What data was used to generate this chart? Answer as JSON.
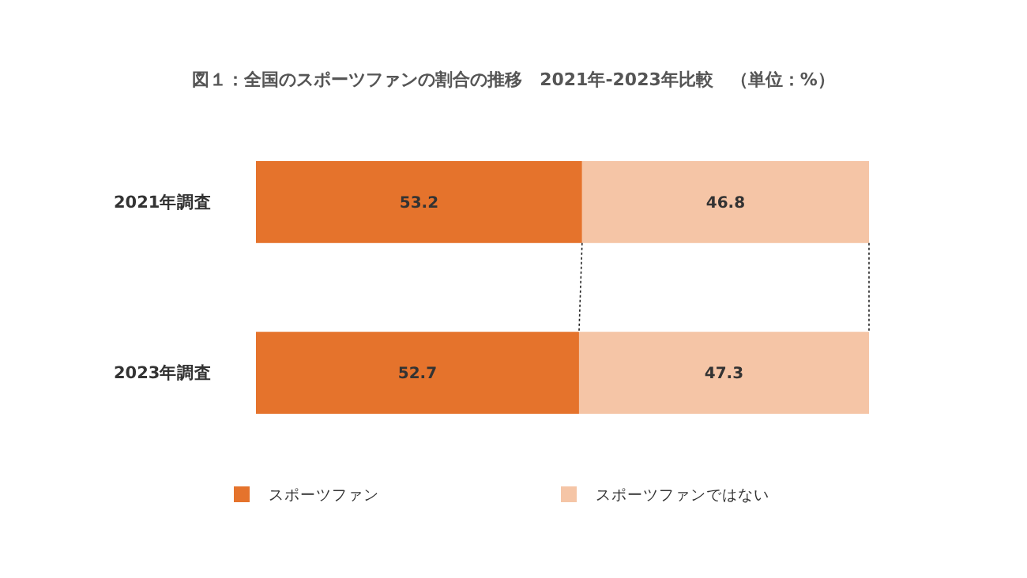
{
  "chart_data": {
    "type": "bar",
    "orientation": "horizontal",
    "stacked": true,
    "title": "図１：全国のスポーツファンの割合の推移　2021年-2023年比較　（単位：%）",
    "categories": [
      "2021年調査",
      "2023年調査"
    ],
    "series": [
      {
        "name": "スポーツファン",
        "color": "#e5732c",
        "values": [
          53.2,
          52.7
        ]
      },
      {
        "name": "スポーツファンではない",
        "color": "#f5c5a6",
        "values": [
          46.8,
          47.3
        ]
      }
    ],
    "data_labels": true,
    "legend": "bottom"
  }
}
